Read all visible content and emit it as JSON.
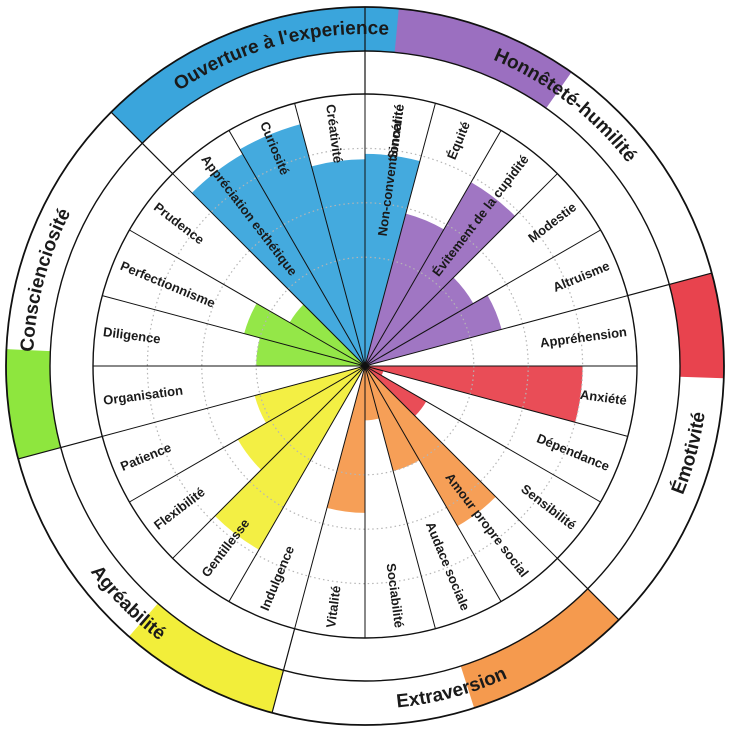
{
  "chart_data": {
    "type": "radial-bar",
    "scale_max": 5,
    "domains": [
      {
        "name": "Honnêteté-humilité",
        "color": "#9b6fc0",
        "facets": [
          {
            "name": "Sincérité",
            "value": 0
          },
          {
            "name": "Équité",
            "value": 2.9
          },
          {
            "name": "Évitement de la cupidité",
            "value": 3.9
          },
          {
            "name": "Modestie",
            "value": 2.3
          },
          {
            "name": "Altruisme",
            "value": 2.6
          }
        ]
      },
      {
        "name": "Émotivité",
        "color": "#e8434e",
        "facets": [
          {
            "name": "Appréhension",
            "value": 0
          },
          {
            "name": "Anxiété",
            "value": 4.0
          },
          {
            "name": "Dépendance",
            "value": 0.35
          },
          {
            "name": "Sensibilité",
            "value": 1.3
          }
        ]
      },
      {
        "name": "Extraversion",
        "color": "#f59a4e",
        "facets": [
          {
            "name": "Amour propre social",
            "value": 3.4
          },
          {
            "name": "Audace sociale",
            "value": 2.0
          },
          {
            "name": "Sociabilité",
            "value": 1.0
          },
          {
            "name": "Vitalité",
            "value": 2.7
          }
        ]
      },
      {
        "name": "Agréabilité",
        "color": "#f2ee3a",
        "facets": [
          {
            "name": "Indulgence",
            "value": 0
          },
          {
            "name": "Gentillesse",
            "value": 3.9
          },
          {
            "name": "Flexibilité",
            "value": 2.7
          },
          {
            "name": "Patience",
            "value": 2.1
          }
        ]
      },
      {
        "name": "Conscienciosité",
        "color": "#8ee63e",
        "facets": [
          {
            "name": "Organisation",
            "value": 0
          },
          {
            "name": "Diligence",
            "value": 2.0
          },
          {
            "name": "Perfectionnisme",
            "value": 2.3
          },
          {
            "name": "Prudence",
            "value": 1.6
          }
        ]
      },
      {
        "name": "Ouverture à l'experience",
        "color": "#3aa5dc",
        "facets": [
          {
            "name": "Appréciation esthétique",
            "value": 4.5
          },
          {
            "name": "Curiosité",
            "value": 4.6
          },
          {
            "name": "Créativité",
            "value": 3.8
          },
          {
            "name": "Non-conventionnalité",
            "value": 3.9
          }
        ]
      }
    ]
  }
}
